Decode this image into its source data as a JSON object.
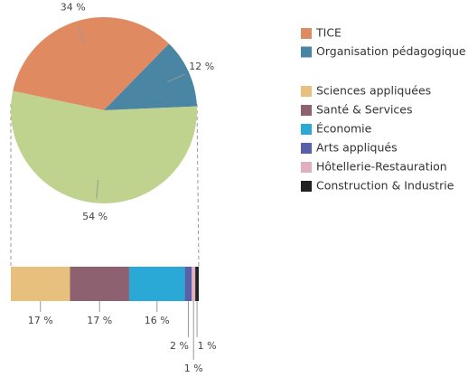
{
  "chart_data": {
    "type": "bar-of-pie",
    "pie": {
      "categories": [
        "TICE",
        "Organisation pédagogique",
        null
      ],
      "values": [
        34,
        12,
        54
      ],
      "value_labels": [
        "34 %",
        "12 %",
        "54 %"
      ],
      "colors": [
        "#e08a62",
        "#4a86a3",
        "#bfd38f"
      ]
    },
    "bar": {
      "categories": [
        "Sciences appliquées",
        "Santé & Services",
        "Économie",
        "Arts appliqués",
        "Hôtellerie-Restauration",
        "Construction & Industrie"
      ],
      "values": [
        17,
        17,
        16,
        2,
        1,
        1
      ],
      "value_labels": [
        "17 %",
        "17 %",
        "16 %",
        "2 %",
        "1 %",
        "1 %"
      ],
      "colors": [
        "#e8c07e",
        "#8e6170",
        "#2aa8d6",
        "#5a5faa",
        "#e0b0bd",
        "#222222"
      ]
    }
  }
}
